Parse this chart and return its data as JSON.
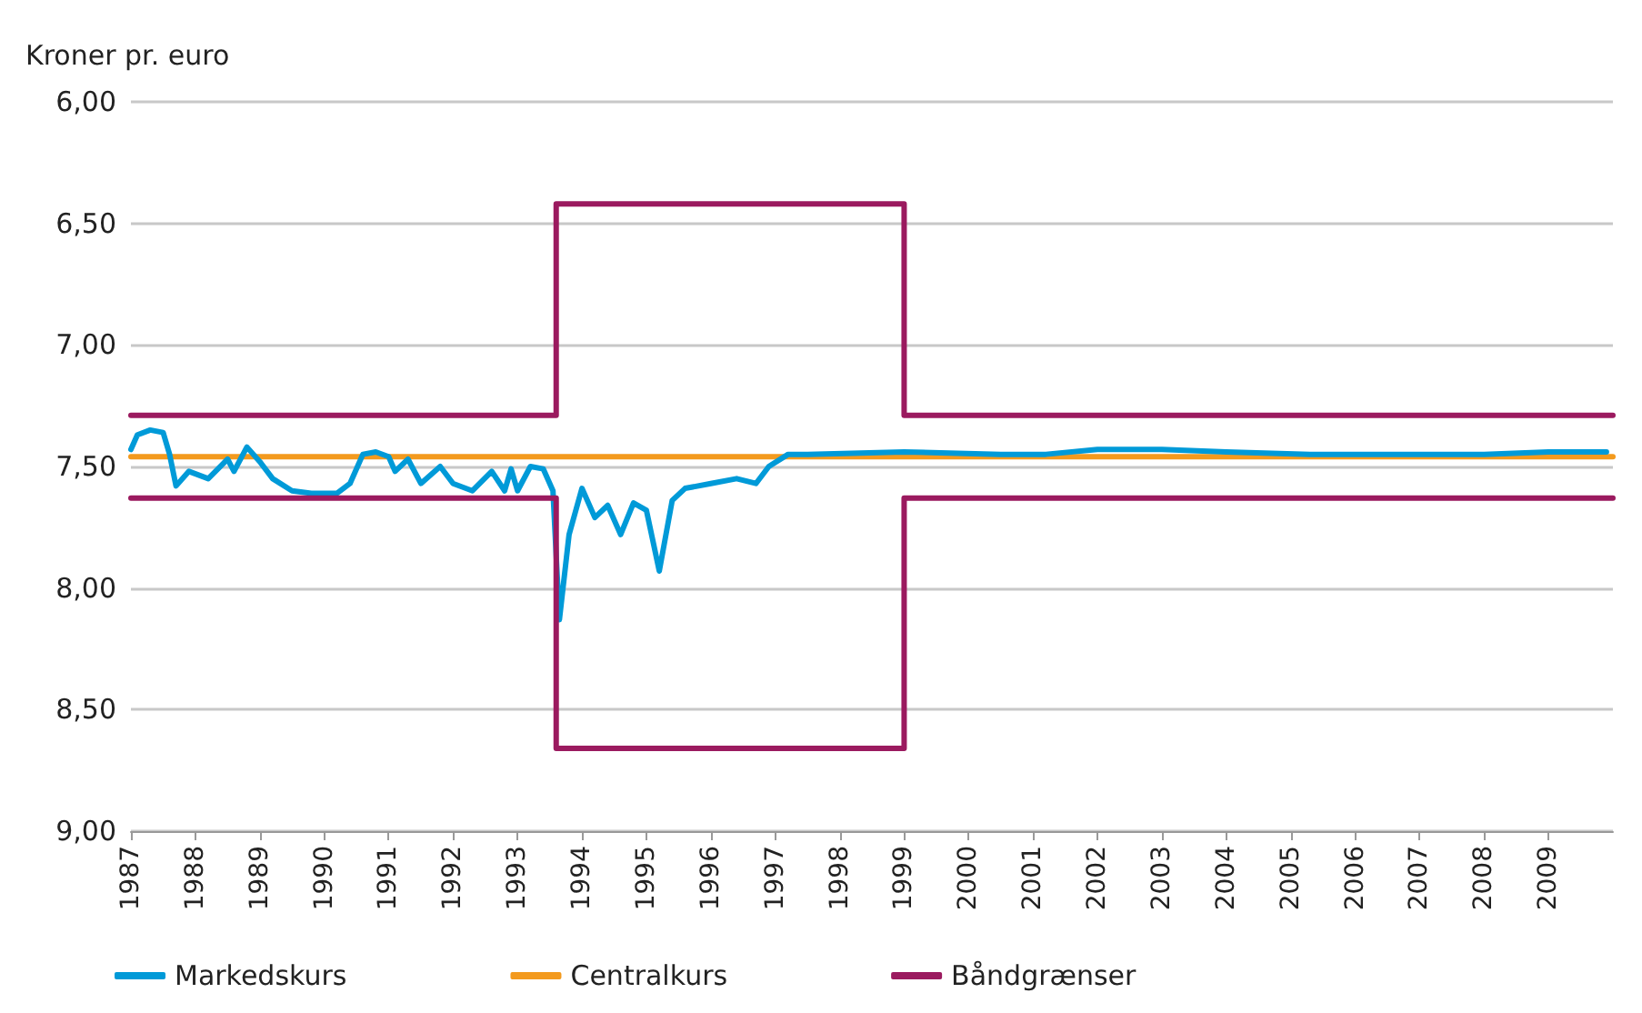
{
  "chart_data": {
    "type": "line",
    "ylabel": "Kroner pr. euro",
    "xlim": [
      1987,
      2010
    ],
    "xticks": [
      1987,
      1988,
      1989,
      1990,
      1991,
      1992,
      1993,
      1994,
      1995,
      1996,
      1997,
      1998,
      1999,
      2000,
      2001,
      2002,
      2003,
      2004,
      2005,
      2006,
      2007,
      2008,
      2009
    ],
    "ylim": [
      9.0,
      6.0
    ],
    "yticks": [
      {
        "value": 6.0,
        "label": "6,00"
      },
      {
        "value": 6.5,
        "label": "6,50"
      },
      {
        "value": 7.0,
        "label": "7,00"
      },
      {
        "value": 7.5,
        "label": "7,50"
      },
      {
        "value": 8.0,
        "label": "8,00"
      },
      {
        "value": 8.5,
        "label": "8,50"
      },
      {
        "value": 9.0,
        "label": "9,00"
      }
    ],
    "grid": "y",
    "legend": "bottom",
    "marker": "none",
    "line_style": "solid",
    "series": [
      {
        "name": "Markedskurs",
        "color": "#009ad8",
        "x": [
          1987.0,
          1987.1,
          1987.3,
          1987.5,
          1987.6,
          1987.7,
          1987.9,
          1988.2,
          1988.5,
          1988.6,
          1988.8,
          1989.0,
          1989.2,
          1989.5,
          1989.8,
          1990.2,
          1990.4,
          1990.6,
          1990.8,
          1991.0,
          1991.1,
          1991.3,
          1991.5,
          1991.8,
          1992.0,
          1992.3,
          1992.6,
          1992.8,
          1992.9,
          1993.0,
          1993.2,
          1993.4,
          1993.55,
          1993.65,
          1993.8,
          1994.0,
          1994.2,
          1994.4,
          1994.6,
          1994.8,
          1995.0,
          1995.2,
          1995.4,
          1995.6,
          1996.0,
          1996.4,
          1996.7,
          1996.9,
          1997.2,
          1997.5,
          1999.0,
          2000.5,
          2001.2,
          2002.0,
          2003.0,
          2004.0,
          2005.3,
          2006.0,
          2007.0,
          2008.0,
          2009.0,
          2009.9
        ],
        "values": [
          7.43,
          7.37,
          7.35,
          7.36,
          7.45,
          7.58,
          7.52,
          7.55,
          7.47,
          7.52,
          7.42,
          7.48,
          7.55,
          7.6,
          7.61,
          7.61,
          7.57,
          7.45,
          7.44,
          7.46,
          7.52,
          7.47,
          7.57,
          7.5,
          7.57,
          7.6,
          7.52,
          7.6,
          7.51,
          7.6,
          7.5,
          7.51,
          7.6,
          8.13,
          7.78,
          7.59,
          7.71,
          7.66,
          7.78,
          7.65,
          7.68,
          7.93,
          7.64,
          7.59,
          7.57,
          7.55,
          7.57,
          7.5,
          7.45,
          7.45,
          7.44,
          7.45,
          7.45,
          7.43,
          7.43,
          7.44,
          7.45,
          7.45,
          7.45,
          7.45,
          7.44,
          7.44
        ]
      },
      {
        "name": "Centralkurs",
        "color": "#f39a1e",
        "x": [
          1987.0,
          2010.0
        ],
        "values": [
          7.46,
          7.46
        ]
      },
      {
        "name": "Båndgrænser",
        "color": "#9b1a5f",
        "type": "step",
        "x": [
          1987.0,
          1993.6,
          1999.0,
          2010.0
        ],
        "values": [
          7.29,
          6.42,
          7.29,
          7.29
        ]
      },
      {
        "color": "#9b1a5f",
        "type": "step",
        "x": [
          1987.0,
          1993.6,
          1999.0,
          2010.0
        ],
        "values": [
          7.63,
          8.66,
          7.63,
          7.63
        ]
      }
    ]
  }
}
